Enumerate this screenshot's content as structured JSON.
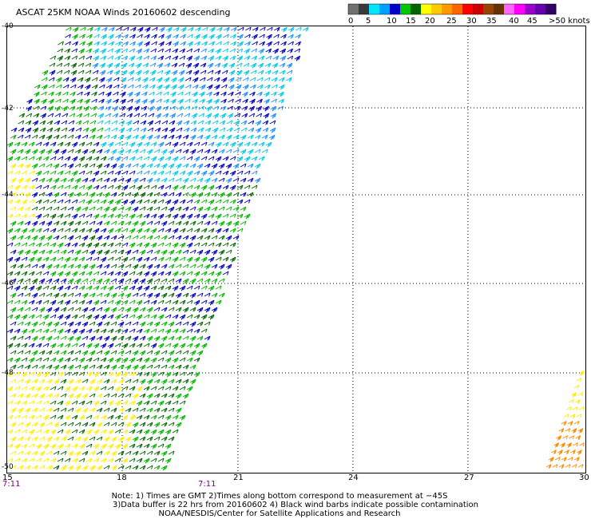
{
  "title": "ASCAT 25KM NOAA Winds 20160602 descending",
  "color_scale": {
    "labels": [
      "0",
      "5",
      "10",
      "15",
      "20",
      "25",
      "30",
      "35",
      "40",
      "45",
      ">50 knots"
    ],
    "colors": [
      "#707070",
      "#3a3a3a",
      "#00e6ff",
      "#00a0ff",
      "#0000c8",
      "#00c800",
      "#006600",
      "#ffff00",
      "#ffcc00",
      "#ff9900",
      "#ff6600",
      "#ff0000",
      "#cc0000",
      "#994400",
      "#663300",
      "#ff66ff",
      "#ff00ff",
      "#9900cc",
      "#6600aa",
      "#330066"
    ]
  },
  "latitude_labels": [
    "-40",
    "-42",
    "-44",
    "-46",
    "-48",
    "-50"
  ],
  "longitude_labels": [
    "15",
    "18",
    "21",
    "24",
    "27",
    "30"
  ],
  "time_labels": [
    "7:11",
    "7:11"
  ],
  "notes": {
    "line1": "Note: 1) Times are GMT 2)Times along bottom correspond to measurement at −45S",
    "line2": "3)Data buffer is 22 hrs from 20160602 4) Black wind barbs indicate possible contamination",
    "line3": "NOAA/NESDIS/Center for Satellite Applications and Research"
  },
  "wind_colors": {
    "cyan": "#00c8e6",
    "light_blue": "#1e90ff",
    "blue": "#0000c0",
    "green": "#00b400",
    "dark_green": "#006400",
    "yellow": "#ffee00",
    "orange": "#ff8c00"
  }
}
